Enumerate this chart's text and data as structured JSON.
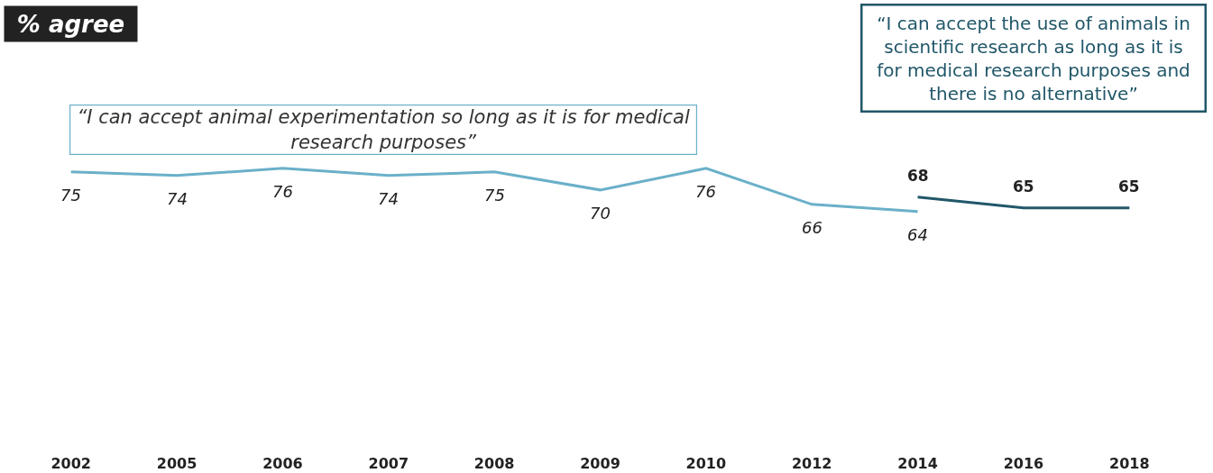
{
  "chart_data": {
    "type": "line",
    "annotations": [
      "% agree"
    ],
    "categories": [
      "2002",
      "2005",
      "2006",
      "2007",
      "2008",
      "2009",
      "2010",
      "2012",
      "2014",
      "2016",
      "2018"
    ],
    "data_labels": true,
    "series": [
      {
        "name": "“I can accept animal experimentation so long as it is for medical research purposes”",
        "color": "#6ab0c9",
        "values": [
          75,
          74,
          76,
          74,
          75,
          70,
          76,
          66,
          64,
          null,
          null
        ]
      },
      {
        "name": "“I can accept the use of animals in scientific research as long as it is for medical research purposes and there is no alternative”",
        "color": "#215769",
        "values": [
          null,
          null,
          null,
          null,
          null,
          null,
          null,
          null,
          68,
          65,
          65
        ]
      }
    ]
  }
}
